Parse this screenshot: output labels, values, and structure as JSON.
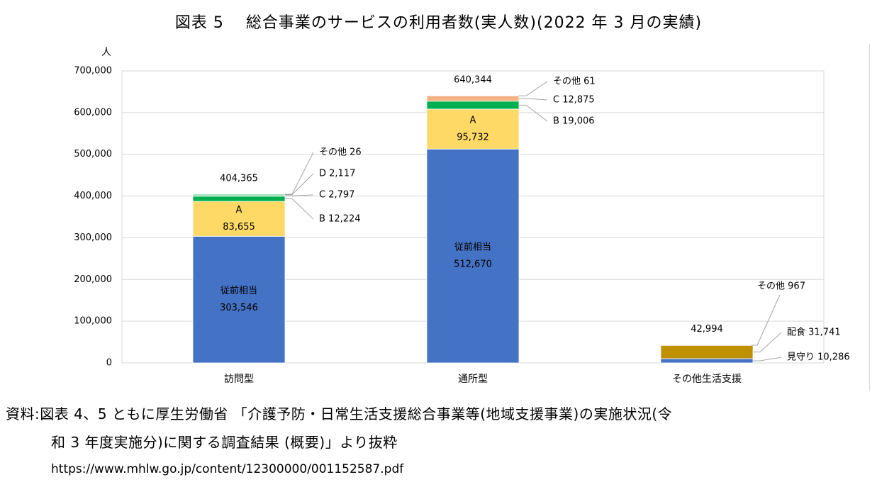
{
  "figure_title": "図表 5　 総合事業のサービスの利用者数(実人数)(2022 年 3 月の実績)",
  "source": {
    "line1": "資料:図表 4、5 ともに厚生労働省 「介護予防・日常生活支援総合事業等(地域支援事業)の実施状況(令",
    "line2": "和 3 年度実施分)に関する調査結果 (概要)」より抜粋",
    "url": "https://www.mhlw.go.jp/content/12300000/001152587.pdf"
  },
  "colors": {
    "blue": "#4472c4",
    "yellow": "#ffd966",
    "green": "#00b050",
    "salmon": "#f4b183",
    "gold": "#bf9000",
    "grid": "#d9d9d9",
    "leader": "#a6a6a6"
  },
  "chart_data": {
    "type": "bar",
    "stacked": true,
    "title": "図表 5　 総合事業のサービスの利用者数(実人数)(2022 年 3 月の実績)",
    "ylabel": "人",
    "ylim": [
      0,
      700000
    ],
    "yticks": [
      0,
      100000,
      200000,
      300000,
      400000,
      500000,
      600000,
      700000
    ],
    "ytick_labels": [
      "0",
      "100,000",
      "200,000",
      "300,000",
      "400,000",
      "500,000",
      "600,000",
      "700,000"
    ],
    "grid": true,
    "categories": [
      "訪問型",
      "通所型",
      "その他生活支援"
    ],
    "bars": [
      {
        "category": "訪問型",
        "total": 404365,
        "total_label": "404,365",
        "segments": [
          {
            "name": "従前相当",
            "value": 303546,
            "value_label": "303,546",
            "color": "blue",
            "label_position": "inside"
          },
          {
            "name": "A",
            "value": 83655,
            "value_label": "83,655",
            "color": "yellow",
            "label_position": "inside"
          },
          {
            "name": "B",
            "value": 12224,
            "value_label": "12,224",
            "color": "green",
            "label_position": "callout"
          },
          {
            "name": "C",
            "value": 2797,
            "value_label": "2,797",
            "color": "green",
            "label_position": "callout"
          },
          {
            "name": "D",
            "value": 2117,
            "value_label": "2,117",
            "color": "green",
            "label_position": "callout"
          },
          {
            "name": "その他",
            "value": 26,
            "value_label": "26",
            "color": "green",
            "label_position": "callout"
          }
        ]
      },
      {
        "category": "通所型",
        "total": 640344,
        "total_label": "640,344",
        "segments": [
          {
            "name": "従前相当",
            "value": 512670,
            "value_label": "512,670",
            "color": "blue",
            "label_position": "inside"
          },
          {
            "name": "A",
            "value": 95732,
            "value_label": "95,732",
            "color": "yellow",
            "label_position": "inside"
          },
          {
            "name": "B",
            "value": 19006,
            "value_label": "19,006",
            "color": "green",
            "label_position": "callout"
          },
          {
            "name": "C",
            "value": 12875,
            "value_label": "12,875",
            "color": "salmon",
            "label_position": "callout"
          },
          {
            "name": "その他",
            "value": 61,
            "value_label": "61",
            "color": "salmon",
            "label_position": "callout"
          }
        ]
      },
      {
        "category": "その他生活支援",
        "total": 42994,
        "total_label": "42,994",
        "segments": [
          {
            "name": "見守り",
            "value": 10286,
            "value_label": "10,286",
            "color": "blue",
            "label_position": "callout"
          },
          {
            "name": "配食",
            "value": 31741,
            "value_label": "31,741",
            "color": "gold",
            "label_position": "callout"
          },
          {
            "name": "その他",
            "value": 967,
            "value_label": "967",
            "color": "gold",
            "label_position": "callout"
          }
        ]
      }
    ]
  }
}
